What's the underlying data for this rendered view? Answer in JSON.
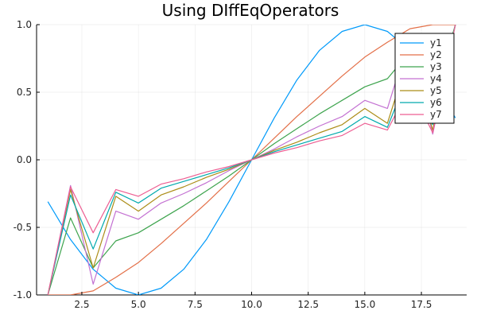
{
  "chart_data": {
    "type": "line",
    "title": "Using DIffEqOperators",
    "xlabel": "",
    "ylabel": "",
    "xlim": [
      0.5,
      19.5
    ],
    "ylim": [
      -1.0,
      1.0
    ],
    "xticks": [
      2.5,
      5.0,
      7.5,
      10.0,
      12.5,
      15.0,
      17.5
    ],
    "xtick_labels": [
      "2.5",
      "5.0",
      "7.5",
      "10.0",
      "12.5",
      "15.0",
      "17.5"
    ],
    "yticks": [
      -1.0,
      -0.5,
      0.0,
      0.5,
      1.0
    ],
    "ytick_labels": [
      "-1.0",
      "-0.5",
      "0.0",
      "0.5",
      "1.0"
    ],
    "grid": true,
    "legend_position": "top-right",
    "x": [
      1,
      2,
      3,
      4,
      5,
      6,
      7,
      8,
      9,
      10,
      11,
      12,
      13,
      14,
      15,
      16,
      17,
      18,
      19
    ],
    "series": [
      {
        "name": "y1",
        "color": "#009AFA",
        "values": [
          -0.31,
          -0.59,
          -0.81,
          -0.95,
          -1.0,
          -0.95,
          -0.81,
          -0.59,
          -0.31,
          0.0,
          0.31,
          0.59,
          0.81,
          0.95,
          1.0,
          0.95,
          0.81,
          0.59,
          0.31
        ]
      },
      {
        "name": "y2",
        "color": "#E36F47",
        "values": [
          -1.0,
          -1.0,
          -0.97,
          -0.87,
          -0.76,
          -0.62,
          -0.47,
          -0.32,
          -0.16,
          0.0,
          0.16,
          0.32,
          0.47,
          0.62,
          0.76,
          0.87,
          0.97,
          1.0,
          1.0
        ]
      },
      {
        "name": "y3",
        "color": "#3EA44E",
        "values": [
          -1.0,
          -0.43,
          -0.8,
          -0.6,
          -0.54,
          -0.44,
          -0.34,
          -0.23,
          -0.12,
          0.0,
          0.12,
          0.23,
          0.34,
          0.44,
          0.54,
          0.6,
          0.8,
          0.43,
          1.0
        ]
      },
      {
        "name": "y4",
        "color": "#C371D2",
        "values": [
          -1.0,
          -0.19,
          -0.92,
          -0.38,
          -0.44,
          -0.32,
          -0.25,
          -0.17,
          -0.08,
          0.0,
          0.08,
          0.17,
          0.25,
          0.32,
          0.44,
          0.38,
          0.92,
          0.19,
          1.0
        ]
      },
      {
        "name": "y5",
        "color": "#AC8D18",
        "values": [
          -1.0,
          -0.22,
          -0.8,
          -0.27,
          -0.38,
          -0.26,
          -0.2,
          -0.13,
          -0.07,
          0.0,
          0.07,
          0.13,
          0.2,
          0.26,
          0.38,
          0.27,
          0.8,
          0.22,
          1.0
        ]
      },
      {
        "name": "y6",
        "color": "#00A9AD",
        "values": [
          -1.0,
          -0.26,
          -0.66,
          -0.24,
          -0.32,
          -0.21,
          -0.16,
          -0.11,
          -0.06,
          0.0,
          0.06,
          0.11,
          0.16,
          0.21,
          0.32,
          0.24,
          0.66,
          0.26,
          1.0
        ]
      },
      {
        "name": "y7",
        "color": "#ED5D92",
        "values": [
          -1.0,
          -0.2,
          -0.54,
          -0.22,
          -0.27,
          -0.18,
          -0.14,
          -0.09,
          -0.05,
          0.0,
          0.05,
          0.09,
          0.14,
          0.18,
          0.27,
          0.22,
          0.54,
          0.2,
          1.0
        ]
      }
    ]
  }
}
